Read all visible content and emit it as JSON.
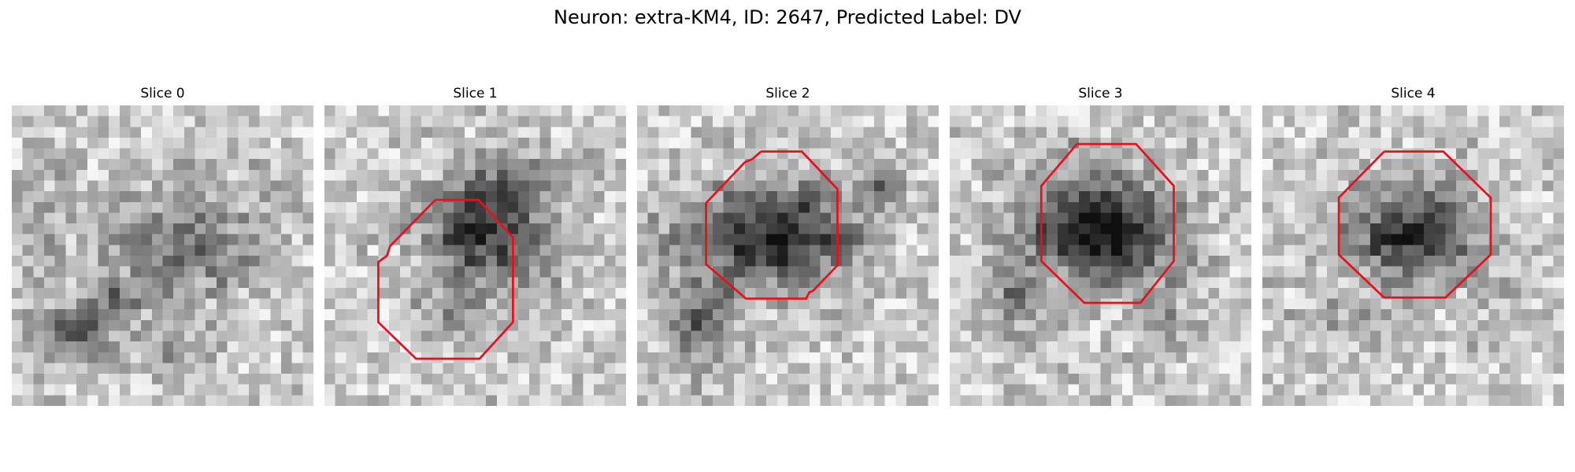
{
  "figure": {
    "title": "Neuron: extra-KM4, ID: 2647, Predicted Label: DV"
  },
  "panels": [
    {
      "title": "Slice 0",
      "has_outline": false
    },
    {
      "title": "Slice 1",
      "has_outline": true
    },
    {
      "title": "Slice 2",
      "has_outline": true
    },
    {
      "title": "Slice 3",
      "has_outline": true
    },
    {
      "title": "Slice 4",
      "has_outline": true
    }
  ],
  "colors": {
    "outline": "#e8101a",
    "grayscale_light": "#f4f4f4",
    "grayscale_dark": "#1a1a1a"
  }
}
